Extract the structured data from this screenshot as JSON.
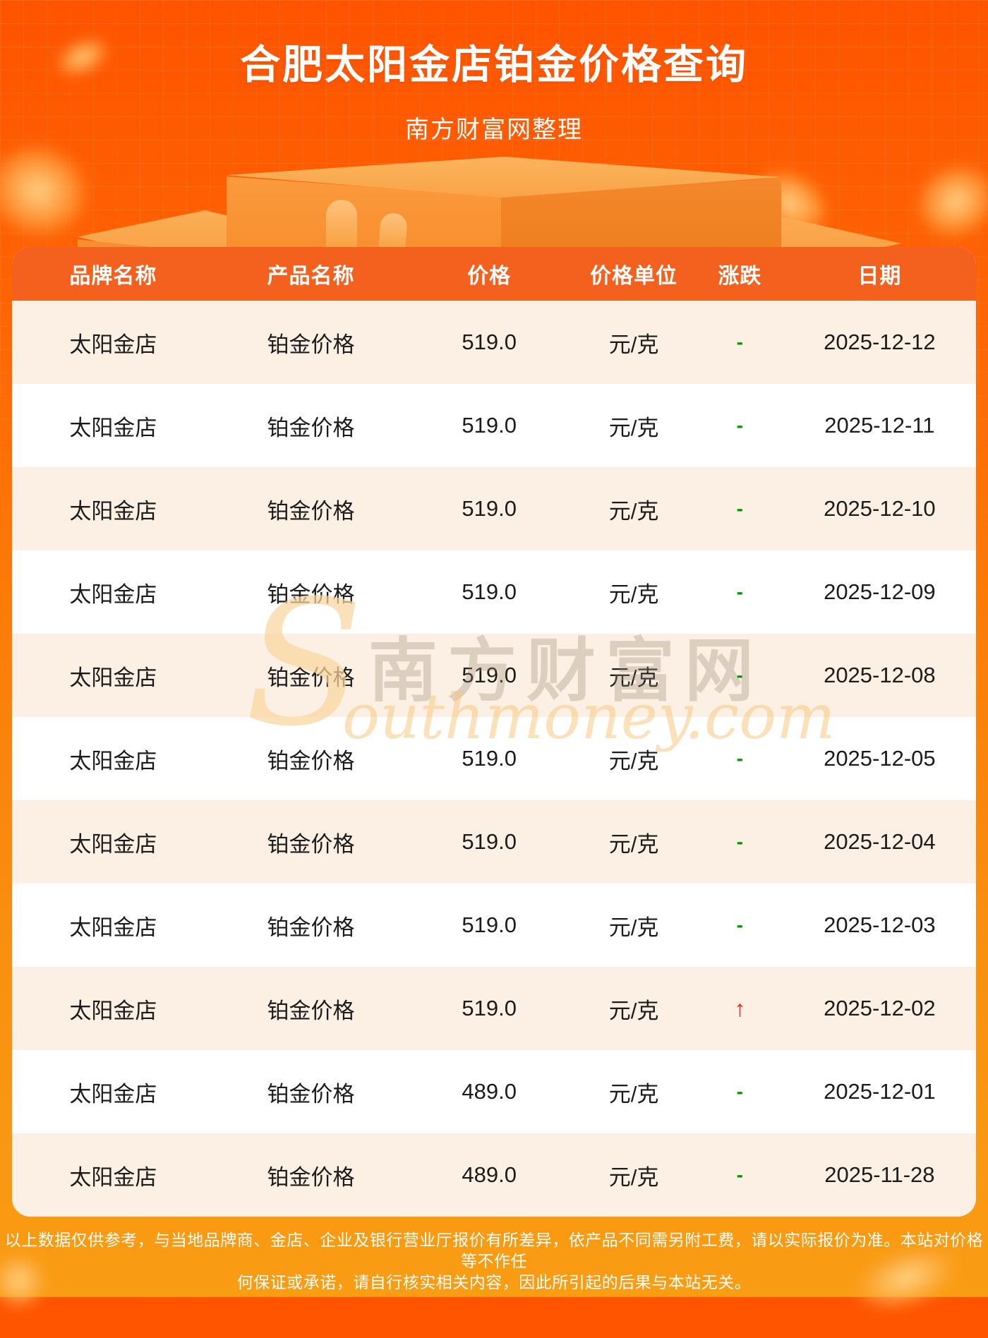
{
  "header": {
    "title": "合肥太阳金店铂金价格查询",
    "subtitle": "南方财富网整理"
  },
  "table": {
    "columns": [
      "品牌名称",
      "产品名称",
      "价格",
      "价格单位",
      "涨跌",
      "日期"
    ],
    "rows": [
      {
        "brand": "太阳金店",
        "product": "铂金价格",
        "price": "519.0",
        "unit": "元/克",
        "change": "-",
        "change_type": "flat",
        "date": "2025-12-12"
      },
      {
        "brand": "太阳金店",
        "product": "铂金价格",
        "price": "519.0",
        "unit": "元/克",
        "change": "-",
        "change_type": "flat",
        "date": "2025-12-11"
      },
      {
        "brand": "太阳金店",
        "product": "铂金价格",
        "price": "519.0",
        "unit": "元/克",
        "change": "-",
        "change_type": "flat",
        "date": "2025-12-10"
      },
      {
        "brand": "太阳金店",
        "product": "铂金价格",
        "price": "519.0",
        "unit": "元/克",
        "change": "-",
        "change_type": "flat",
        "date": "2025-12-09"
      },
      {
        "brand": "太阳金店",
        "product": "铂金价格",
        "price": "519.0",
        "unit": "元/克",
        "change": "-",
        "change_type": "flat",
        "date": "2025-12-08"
      },
      {
        "brand": "太阳金店",
        "product": "铂金价格",
        "price": "519.0",
        "unit": "元/克",
        "change": "-",
        "change_type": "flat",
        "date": "2025-12-05"
      },
      {
        "brand": "太阳金店",
        "product": "铂金价格",
        "price": "519.0",
        "unit": "元/克",
        "change": "-",
        "change_type": "flat",
        "date": "2025-12-04"
      },
      {
        "brand": "太阳金店",
        "product": "铂金价格",
        "price": "519.0",
        "unit": "元/克",
        "change": "-",
        "change_type": "flat",
        "date": "2025-12-03"
      },
      {
        "brand": "太阳金店",
        "product": "铂金价格",
        "price": "519.0",
        "unit": "元/克",
        "change": "↑",
        "change_type": "up",
        "date": "2025-12-02"
      },
      {
        "brand": "太阳金店",
        "product": "铂金价格",
        "price": "489.0",
        "unit": "元/克",
        "change": "-",
        "change_type": "flat",
        "date": "2025-12-01"
      },
      {
        "brand": "太阳金店",
        "product": "铂金价格",
        "price": "489.0",
        "unit": "元/克",
        "change": "-",
        "change_type": "flat",
        "date": "2025-11-28"
      }
    ]
  },
  "watermark": {
    "big_letter": "S",
    "cn": "南方财富网",
    "en": "outhmoney.com"
  },
  "footer": {
    "line1": "以上数据仅供参考，与当地品牌商、金店、企业及银行营业厅报价有所差异，依产品不同需另附工费，请以实际报价为准。本站对价格等不作任",
    "line2": "何保证或承诺，请自行核实相关内容，因此所引起的后果与本站无关。"
  },
  "colors": {
    "page_top": "#ff5300",
    "page_bottom": "#f99d13",
    "table_header": "#f4611e",
    "row_alt": "#fbf0e3",
    "change_flat": "#009900",
    "change_up": "#ee2211"
  }
}
